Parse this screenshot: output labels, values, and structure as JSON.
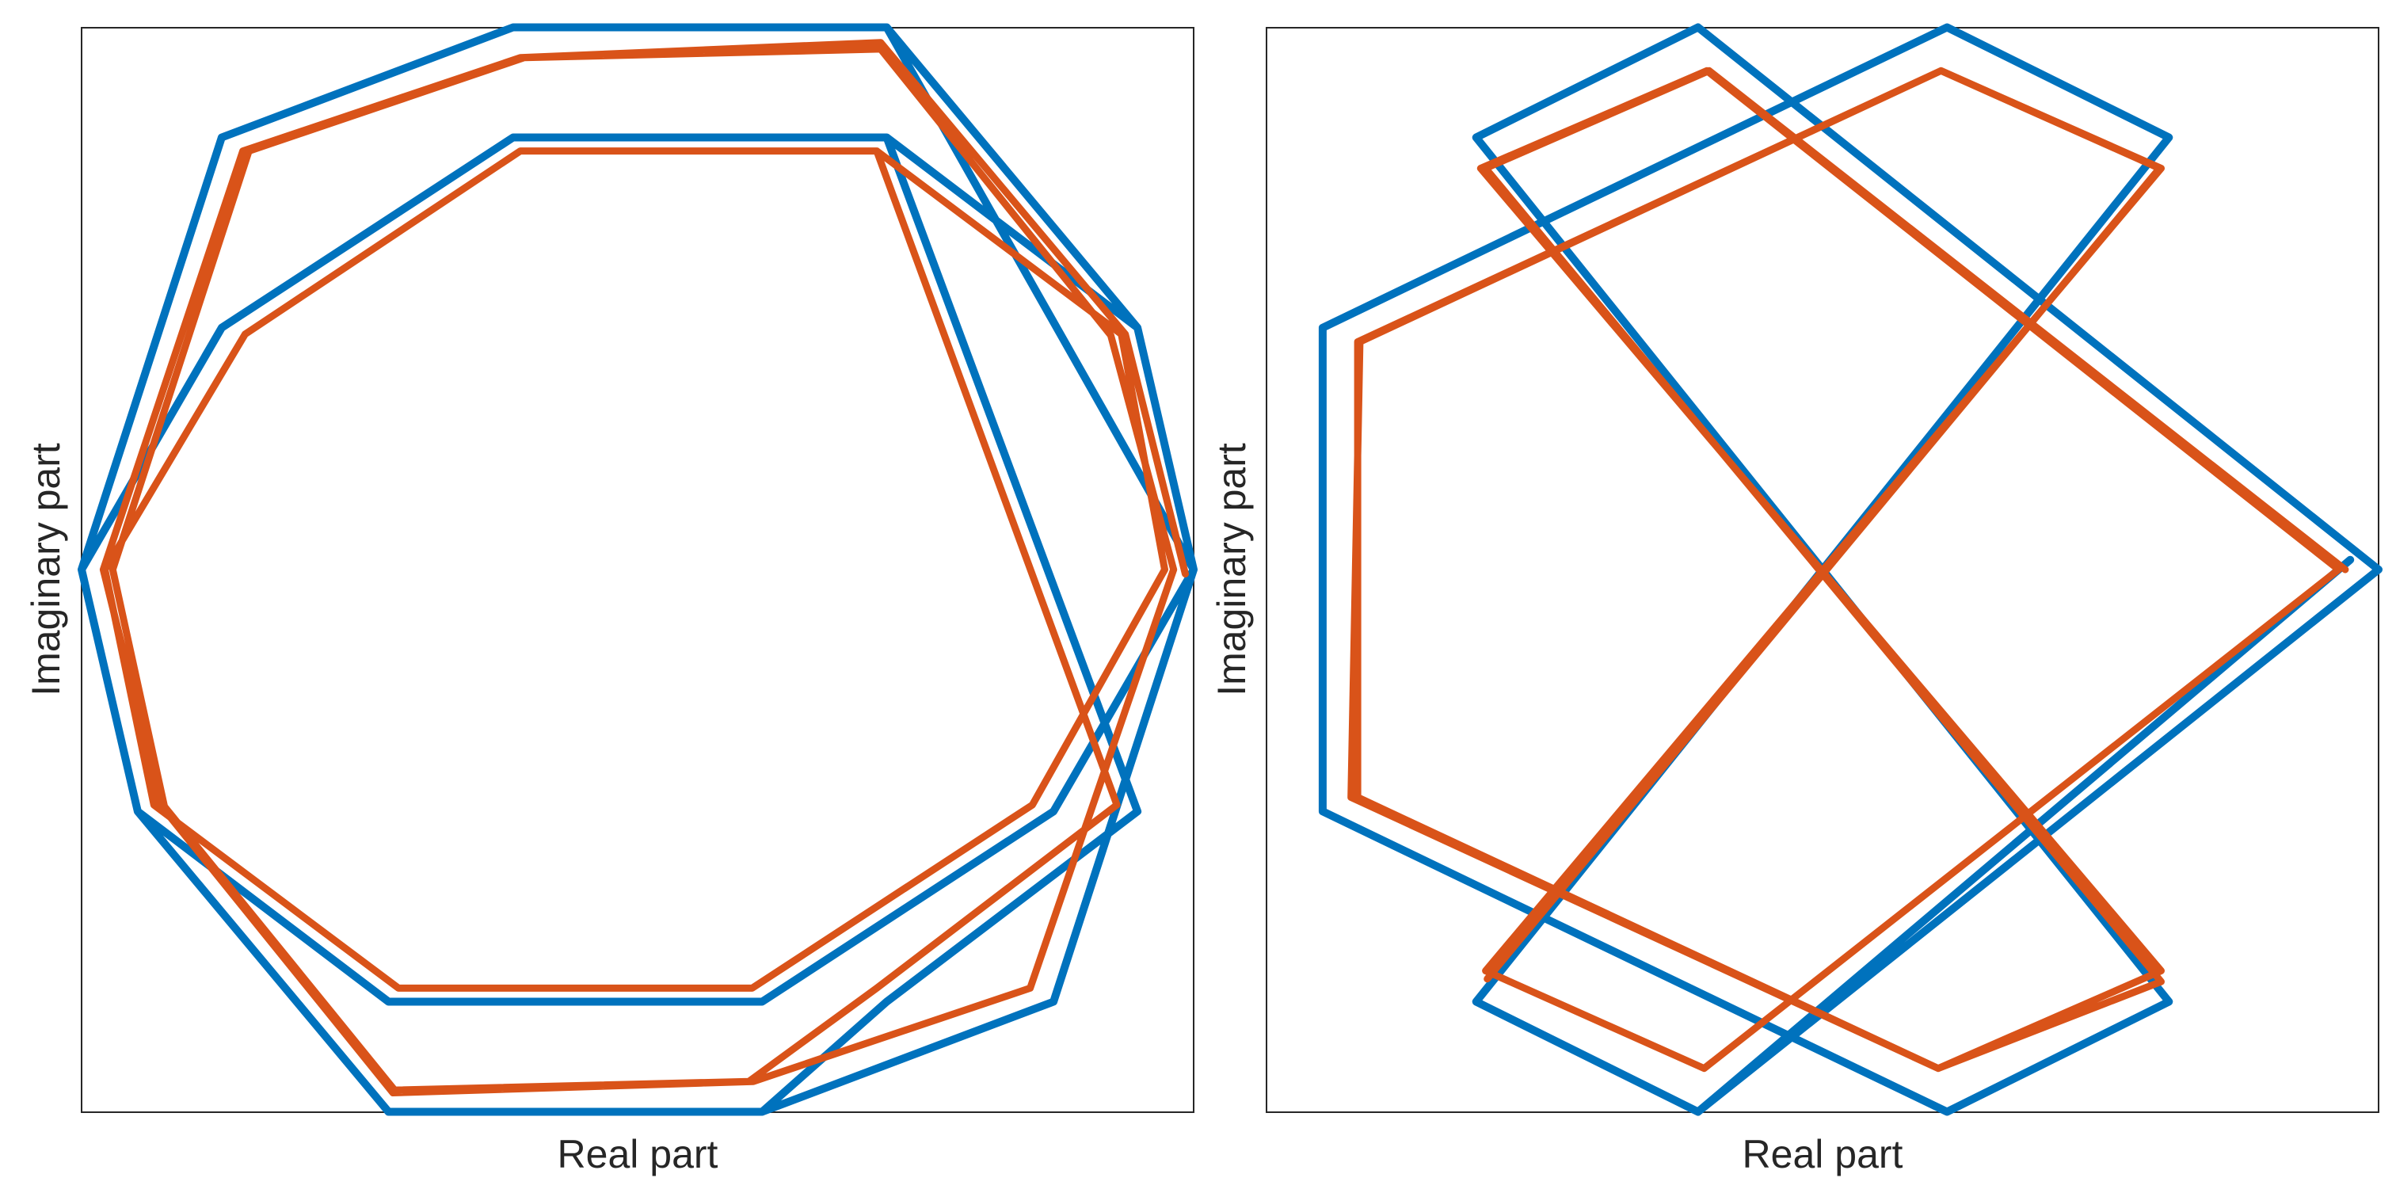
{
  "chart_data": [
    {
      "type": "line",
      "title": "",
      "xlabel": "Real part",
      "ylabel": "Imaginary part",
      "xlim": [
        -1,
        1
      ],
      "ylim": [
        -1,
        1
      ],
      "grid": false,
      "xticks": [],
      "yticks": [],
      "series": [
        {
          "color": "#0072BD",
          "style": "polygonal star, open path",
          "x": [
            1.0,
            0.448,
            -0.224,
            -0.748,
            -1.0,
            -0.899,
            -0.448,
            0.224,
            0.748,
            1.0,
            0.899,
            0.448,
            -0.224,
            -0.748,
            -1.0,
            -0.899,
            -0.448,
            0.224,
            0.448,
            0.899,
            0.448,
            -0.224,
            -0.748,
            -1.0,
            -0.899,
            -0.448,
            0.224,
            0.748,
            1.0,
            0.899,
            0.448
          ],
          "y": [
            0.0,
            1.0,
            1.0,
            0.797,
            0.0,
            -0.446,
            -1.0,
            -1.0,
            -0.797,
            0.0,
            0.446,
            1.0,
            1.0,
            0.797,
            0.0,
            -0.446,
            -1.0,
            -1.0,
            -0.797,
            -0.446,
            0.797,
            0.797,
            0.446,
            -0.0,
            -0.446,
            -0.797,
            -0.797,
            -0.446,
            0.0,
            0.446,
            0.797
          ]
        },
        {
          "color": "#D95319",
          "style": "smoothed star, open path",
          "x": [
            0.985,
            0.877,
            0.437,
            -0.211,
            -0.71,
            -0.961,
            -0.856,
            -0.44,
            0.208,
            0.706,
            0.964,
            0.851,
            0.437,
            -0.204,
            -0.699,
            -0.944,
            -0.851,
            -0.437,
            0.2,
            0.43,
            0.862,
            0.43,
            -0.211,
            -0.706,
            -0.958,
            -0.87,
            -0.43,
            0.206,
            0.71,
            0.948,
            0.87,
            0.43
          ],
          "y": [
            -0.008,
            0.434,
            0.972,
            0.944,
            0.772,
            0.0,
            -0.437,
            -0.965,
            -0.944,
            -0.772,
            0.0,
            0.432,
            0.96,
            0.944,
            0.772,
            0.0,
            -0.437,
            -0.96,
            -0.944,
            -0.772,
            -0.434,
            0.772,
            0.772,
            0.434,
            0.0,
            -0.434,
            -0.772,
            -0.772,
            -0.434,
            0.0,
            0.434,
            0.772
          ]
        }
      ]
    },
    {
      "type": "line",
      "title": "",
      "xlabel": "Real part",
      "ylabel": "Imaginary part",
      "xlim": [
        -1,
        1
      ],
      "ylim": [
        -1,
        1
      ],
      "grid": false,
      "xticks": [],
      "yticks": [],
      "series": [
        {
          "color": "#0072BD",
          "style": "polygonal star, open path",
          "x": [
            1.0,
            -0.224,
            -0.623,
            0.623,
            0.224,
            -0.899,
            -0.899,
            0.224,
            0.623,
            -0.623,
            -0.224,
            1.0,
            -0.224,
            -0.623,
            0.623,
            0.224,
            -0.899,
            -0.899,
            0.224,
            0.623,
            -0.623,
            -0.224,
            0.949
          ],
          "y": [
            0.0,
            1.0,
            0.797,
            -0.797,
            -1.0,
            -0.446,
            0.446,
            1.0,
            0.797,
            -0.797,
            -1.0,
            0.0,
            1.0,
            0.797,
            -0.797,
            -1.0,
            -0.446,
            0.446,
            1.0,
            0.797,
            -0.797,
            -1.0,
            0.018
          ]
        },
        {
          "color": "#D95319",
          "style": "smoothed star, open path",
          "x": [
            0.94,
            -0.204,
            -0.606,
            0.609,
            0.208,
            -0.836,
            -0.836,
            0.213,
            0.609,
            -0.606,
            -0.213,
            0.928,
            -0.208,
            -0.615,
            0.609,
            0.208,
            -0.848,
            -0.832,
            0.213,
            0.606,
            -0.603
          ],
          "y": [
            0.0,
            0.92,
            0.74,
            -0.76,
            -0.92,
            -0.42,
            0.42,
            0.92,
            0.74,
            -0.74,
            -0.92,
            0.0,
            0.92,
            0.74,
            -0.74,
            -0.92,
            -0.42,
            0.42,
            0.92,
            0.74,
            -0.755
          ]
        }
      ]
    }
  ]
}
